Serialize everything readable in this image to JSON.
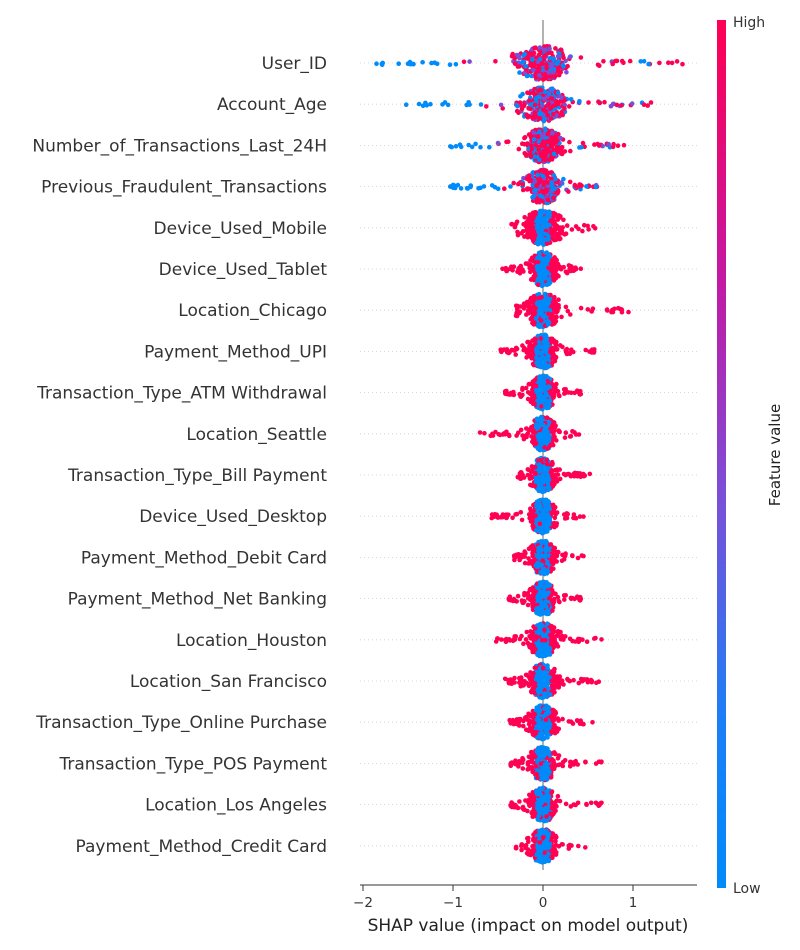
{
  "chart_data": {
    "type": "scatter",
    "subtype": "beeswarm",
    "xlabel": "SHAP value (impact on model output)",
    "xlim": [
      -2,
      1.7
    ],
    "xticks": [
      -2,
      -1,
      0,
      1
    ],
    "xtick_labels": [
      "−2",
      "−1",
      "0",
      "1"
    ],
    "colorbar": {
      "title": "Feature value",
      "high_label": "High",
      "low_label": "Low",
      "low_color": "#008bfb",
      "high_color": "#ff0052"
    },
    "features": [
      {
        "name": "User_ID",
        "min": -1.85,
        "max": 1.55,
        "spread": 0.85,
        "mix": 0.55
      },
      {
        "name": "Account_Age",
        "min": -1.52,
        "max": 1.2,
        "spread": 0.75,
        "mix": 0.5
      },
      {
        "name": "Number_of_Transactions_Last_24H",
        "min": -1.03,
        "max": 0.9,
        "spread": 0.6,
        "mix": 0.6
      },
      {
        "name": "Previous_Fraudulent_Transactions",
        "min": -1.03,
        "max": 0.6,
        "spread": 0.55,
        "mix": 0.55
      },
      {
        "name": "Device_Used_Mobile",
        "min": -0.35,
        "max": 0.58,
        "spread": 0.65,
        "mix": 0.2
      },
      {
        "name": "Device_Used_Tablet",
        "min": -0.45,
        "max": 0.42,
        "spread": 0.45,
        "mix": 0.2
      },
      {
        "name": "Location_Chicago",
        "min": -0.3,
        "max": 0.95,
        "spread": 0.55,
        "mix": 0.18
      },
      {
        "name": "Payment_Method_UPI",
        "min": -0.47,
        "max": 0.57,
        "spread": 0.45,
        "mix": 0.2
      },
      {
        "name": "Transaction_Type_ATM Withdrawal",
        "min": -0.42,
        "max": 0.42,
        "spread": 0.4,
        "mix": 0.18
      },
      {
        "name": "Location_Seattle",
        "min": -0.7,
        "max": 0.4,
        "spread": 0.4,
        "mix": 0.18
      },
      {
        "name": "Transaction_Type_Bill Payment",
        "min": -0.28,
        "max": 0.52,
        "spread": 0.4,
        "mix": 0.18
      },
      {
        "name": "Device_Used_Desktop",
        "min": -0.57,
        "max": 0.45,
        "spread": 0.4,
        "mix": 0.18
      },
      {
        "name": "Payment_Method_Debit Card",
        "min": -0.32,
        "max": 0.45,
        "spread": 0.4,
        "mix": 0.18
      },
      {
        "name": "Payment_Method_Net Banking",
        "min": -0.38,
        "max": 0.42,
        "spread": 0.4,
        "mix": 0.18
      },
      {
        "name": "Location_Houston",
        "min": -0.52,
        "max": 0.65,
        "spread": 0.45,
        "mix": 0.18
      },
      {
        "name": "Location_San Francisco",
        "min": -0.42,
        "max": 0.62,
        "spread": 0.45,
        "mix": 0.18
      },
      {
        "name": "Transaction_Type_Online Purchase",
        "min": -0.37,
        "max": 0.55,
        "spread": 0.42,
        "mix": 0.18
      },
      {
        "name": "Transaction_Type_POS Payment",
        "min": -0.36,
        "max": 0.65,
        "spread": 0.42,
        "mix": 0.18
      },
      {
        "name": "Location_Los Angeles",
        "min": -0.36,
        "max": 0.65,
        "spread": 0.42,
        "mix": 0.18
      },
      {
        "name": "Payment_Method_Credit Card",
        "min": -0.3,
        "max": 0.47,
        "spread": 0.4,
        "mix": 0.18
      }
    ]
  }
}
